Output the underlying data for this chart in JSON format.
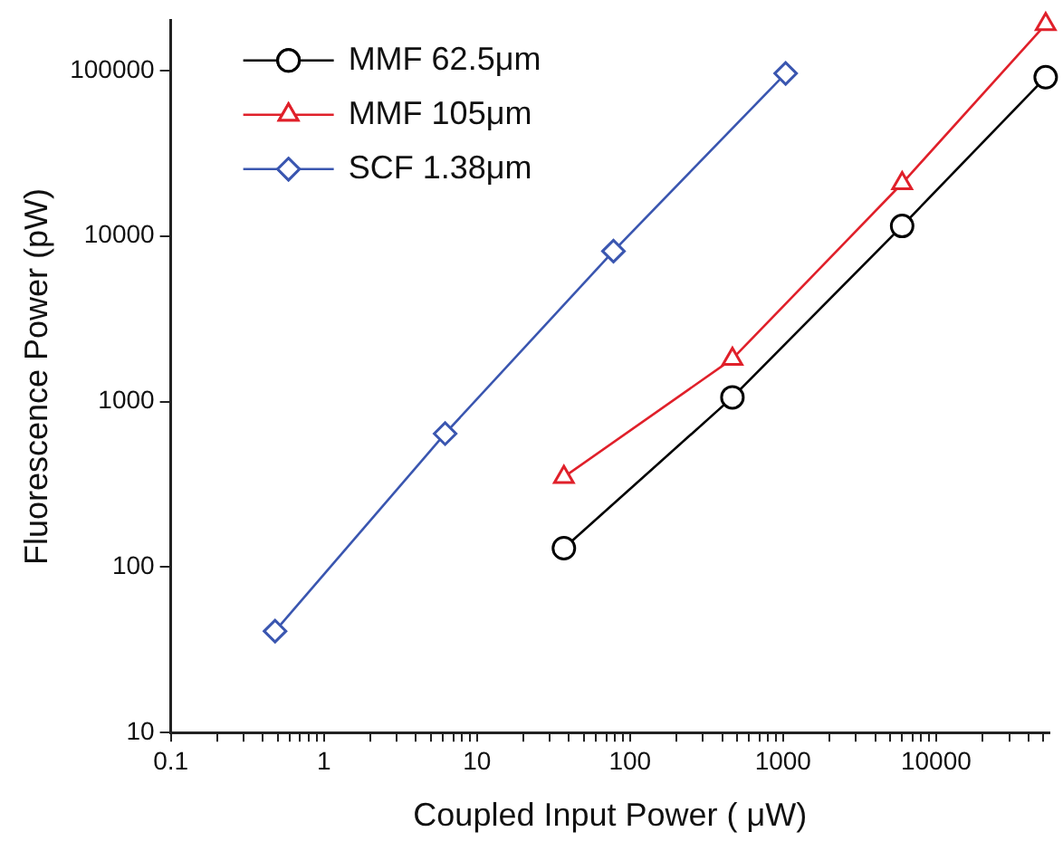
{
  "chart_data": {
    "type": "line",
    "xlabel": "Coupled Input Power ( μW)",
    "ylabel": "Fluorescence Power (pW)",
    "log": "xy",
    "grid": false,
    "legend": "top left",
    "line_style": "solid",
    "xlim": [
      0.1,
      55000
    ],
    "ylim": [
      10,
      200000
    ],
    "xticks": [
      0.1,
      {
        "value": 0.2,
        "label": null
      },
      {
        "value": 0.3,
        "label": null
      },
      {
        "value": 0.4,
        "label": null
      },
      {
        "value": 0.5,
        "label": null
      },
      {
        "value": 0.6,
        "label": null
      },
      {
        "value": 0.7,
        "label": null
      },
      {
        "value": 0.8,
        "label": null
      },
      {
        "value": 0.9,
        "label": null
      },
      1,
      {
        "value": 2,
        "label": null
      },
      {
        "value": 3,
        "label": null
      },
      {
        "value": 4,
        "label": null
      },
      {
        "value": 5,
        "label": null
      },
      {
        "value": 6,
        "label": null
      },
      {
        "value": 7,
        "label": null
      },
      {
        "value": 8,
        "label": null
      },
      {
        "value": 9,
        "label": null
      },
      10,
      {
        "value": 20,
        "label": null
      },
      {
        "value": 30,
        "label": null
      },
      {
        "value": 40,
        "label": null
      },
      {
        "value": 50,
        "label": null
      },
      {
        "value": 60,
        "label": null
      },
      {
        "value": 70,
        "label": null
      },
      {
        "value": 80,
        "label": null
      },
      {
        "value": 90,
        "label": null
      },
      100,
      {
        "value": 200,
        "label": null
      },
      {
        "value": 300,
        "label": null
      },
      {
        "value": 400,
        "label": null
      },
      {
        "value": 500,
        "label": null
      },
      {
        "value": 600,
        "label": null
      },
      {
        "value": 700,
        "label": null
      },
      {
        "value": 800,
        "label": null
      },
      {
        "value": 900,
        "label": null
      },
      1000,
      {
        "value": 2000,
        "label": null
      },
      {
        "value": 3000,
        "label": null
      },
      {
        "value": 4000,
        "label": null
      },
      {
        "value": 5000,
        "label": null
      },
      {
        "value": 6000,
        "label": null
      },
      {
        "value": 7000,
        "label": null
      },
      {
        "value": 8000,
        "label": null
      },
      {
        "value": 9000,
        "label": null
      },
      10000,
      {
        "value": 20000,
        "label": null
      },
      {
        "value": 30000,
        "label": null
      },
      {
        "value": 40000,
        "label": null
      },
      {
        "value": 50000,
        "label": null
      }
    ],
    "yticks": [
      10,
      100,
      1000,
      10000,
      100000
    ],
    "series": [
      {
        "name": "MMF 62.5μm",
        "color": "#000000",
        "marker": "circle",
        "x": [
          37,
          467,
          6000,
          52000
        ],
        "values": [
          130,
          1060,
          11500,
          91000
        ]
      },
      {
        "name": "MMF 105μm",
        "color": "#e0202a",
        "marker": "triangle",
        "x": [
          37,
          467,
          6000,
          52000
        ],
        "values": [
          350,
          1810,
          20800,
          190000
        ]
      },
      {
        "name": "SCF 1.38μm",
        "color": "#3a56b0",
        "marker": "diamond",
        "x": [
          0.48,
          6.2,
          78,
          1040
        ],
        "values": [
          41,
          640,
          8100,
          96000
        ]
      }
    ]
  }
}
